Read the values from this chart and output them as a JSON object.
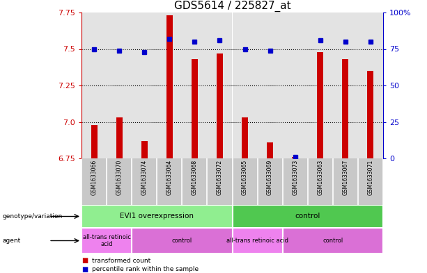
{
  "title": "GDS5614 / 225827_at",
  "samples": [
    "GSM1633066",
    "GSM1633070",
    "GSM1633074",
    "GSM1633064",
    "GSM1633068",
    "GSM1633072",
    "GSM1633065",
    "GSM1633069",
    "GSM1633073",
    "GSM1633063",
    "GSM1633067",
    "GSM1633071"
  ],
  "red_values": [
    6.98,
    7.03,
    6.87,
    7.73,
    7.43,
    7.47,
    7.03,
    6.86,
    6.76,
    7.48,
    7.43,
    7.35
  ],
  "blue_values": [
    75,
    74,
    73,
    82,
    80,
    81,
    75,
    74,
    1,
    81,
    80,
    80
  ],
  "ymin": 6.75,
  "ymax": 7.75,
  "yticks_red": [
    6.75,
    7.0,
    7.25,
    7.5,
    7.75
  ],
  "yticks_blue": [
    0,
    25,
    50,
    75,
    100
  ],
  "blue_pct_labels": [
    "0",
    "25",
    "50",
    "75",
    "100%"
  ],
  "hlines": [
    7.0,
    7.25,
    7.5
  ],
  "genotype_groups": [
    {
      "label": "EVI1 overexpression",
      "start": 0,
      "end": 6,
      "color": "#90EE90"
    },
    {
      "label": "control",
      "start": 6,
      "end": 12,
      "color": "#50C850"
    }
  ],
  "agent_groups": [
    {
      "label": "all-trans retinoic\nacid",
      "start": 0,
      "end": 2,
      "color": "#EE82EE"
    },
    {
      "label": "control",
      "start": 2,
      "end": 6,
      "color": "#DA70D6"
    },
    {
      "label": "all-trans retinoic acid",
      "start": 6,
      "end": 8,
      "color": "#EE82EE"
    },
    {
      "label": "control",
      "start": 8,
      "end": 12,
      "color": "#DA70D6"
    }
  ],
  "red_color": "#CC0000",
  "blue_color": "#0000CC",
  "bar_bg": "#C8C8C8",
  "bg_color": "#FFFFFF",
  "title_fontsize": 11,
  "tick_fontsize": 8,
  "label_fontsize": 7.5
}
